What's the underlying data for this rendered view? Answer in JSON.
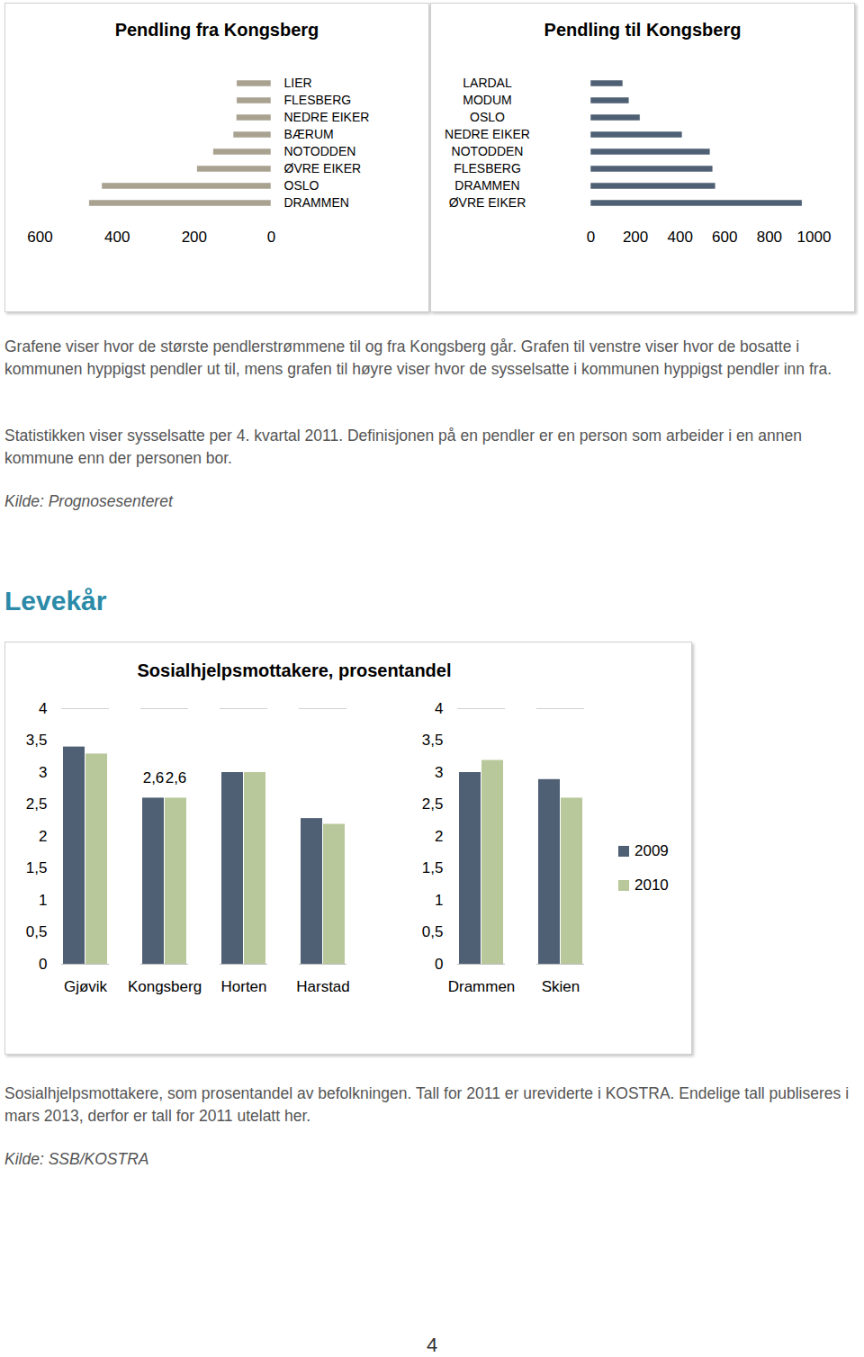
{
  "chart_data": [
    {
      "type": "bar",
      "title": "Pendling fra Kongsberg",
      "orientation": "horizontal",
      "categories": [
        "LIER",
        "FLESBERG",
        "NEDRE EIKER",
        "BÆRUM",
        "NOTODDEN",
        "ØVRE EIKER",
        "OSLO",
        "DRAMMEN"
      ],
      "values": [
        89,
        89,
        90,
        98,
        150,
        192,
        439,
        472
      ],
      "color": "#aaa291",
      "xlim": [
        600,
        0
      ],
      "xticks": [
        600,
        400,
        200,
        0
      ]
    },
    {
      "type": "bar",
      "title": "Pendling til Kongsberg",
      "orientation": "horizontal",
      "categories": [
        "LARDAL",
        "MODUM",
        "OSLO",
        "NEDRE EIKER",
        "NOTODDEN",
        "FLESBERG",
        "DRAMMEN",
        "ØVRE EIKER"
      ],
      "values": [
        145,
        173,
        222,
        411,
        536,
        548,
        560,
        948
      ],
      "color": "#4f6074",
      "xlim": [
        0,
        1000
      ],
      "xticks": [
        0,
        200,
        400,
        600,
        800,
        1000
      ]
    },
    {
      "type": "bar",
      "title": "Sosialhjelpsmottakere, prosentandel",
      "categories": [
        "Gjøvik",
        "Kongsberg",
        "Horten",
        "Harstad",
        null,
        "Drammen",
        "Skien"
      ],
      "series": [
        {
          "name": "2009",
          "color": "#4f6074",
          "values": [
            3.4,
            2.6,
            3.0,
            2.28,
            null,
            3.0,
            2.89
          ],
          "value_labels": [
            null,
            "2,6",
            null,
            null,
            null,
            null,
            null
          ]
        },
        {
          "name": "2010",
          "color": "#b9c89a",
          "values": [
            3.29,
            2.6,
            3.0,
            2.19,
            null,
            3.19,
            2.6
          ],
          "value_labels": [
            null,
            "2,6",
            null,
            null,
            null,
            null,
            null
          ]
        }
      ],
      "ylim": [
        0,
        4
      ],
      "yticks": [
        0,
        {
          "value": 0.5,
          "label": "0,5"
        },
        1,
        {
          "value": 1.5,
          "label": "1,5"
        },
        2,
        {
          "value": 2.5,
          "label": "2,5"
        },
        3,
        {
          "value": 3.5,
          "label": "3,5"
        },
        4
      ],
      "legend": "right"
    }
  ],
  "document": {
    "caption_1": "Grafene viser hvor de største pendlerstrømmene til og fra Kongsberg går. Grafen til venstre viser hvor de bosatte i kommunen hyppigst pendler ut til, mens grafen til høyre viser hvor de sysselsatte i kommunen hyppigst pendler inn fra.",
    "note_1": "Statistikken viser sysselsatte per 4. kvartal 2011. Definisjonen på en pendler er en person som arbeider i en annen kommune enn der personen bor.",
    "source_1": "Kilde: Prognosesenteret",
    "heading": "Levekår",
    "caption_2": "Sosialhjelpsmottakere, som prosentandel av befolkningen. Tall for 2011 er ureviderte i KOSTRA. Endelige tall publiseres i mars 2013, derfor er tall for 2011 utelatt her.",
    "source_2": "Kilde: SSB/KOSTRA",
    "page_number": "4"
  }
}
